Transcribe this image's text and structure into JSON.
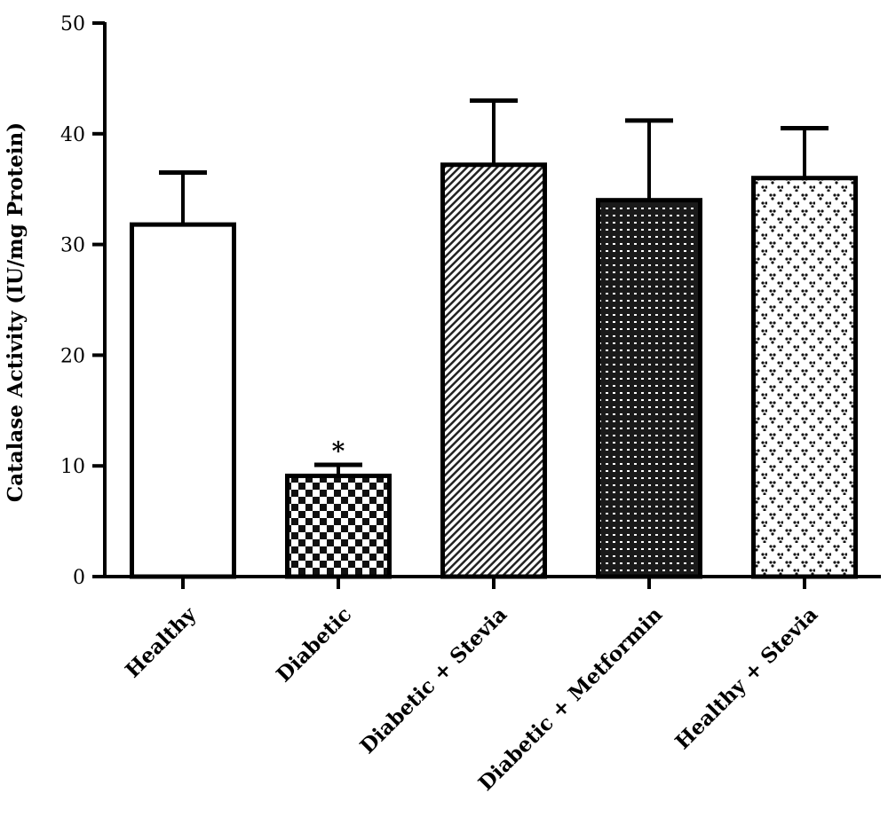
{
  "chart_data": {
    "type": "bar",
    "title": "",
    "xlabel": "",
    "ylabel": "Catalase Activity (IU/mg Protein)",
    "ylim": [
      0,
      50
    ],
    "yticks": [
      0,
      10,
      20,
      30,
      40,
      50
    ],
    "grid": false,
    "categories": [
      "Healthy",
      "Diabetic",
      "Diabetic + Stevia",
      "Diabetic + Metformin",
      "Healthy + Stevia"
    ],
    "values": [
      31.8,
      9.1,
      37.2,
      34.0,
      36.0
    ],
    "errors": [
      4.7,
      1.0,
      5.8,
      7.2,
      4.5
    ],
    "fill_patterns": [
      "white",
      "checkerboard",
      "diagonal-stripes",
      "dense-dots",
      "sparse-dots"
    ],
    "annotations": [
      {
        "category": "Diabetic",
        "text": "*"
      }
    ]
  }
}
